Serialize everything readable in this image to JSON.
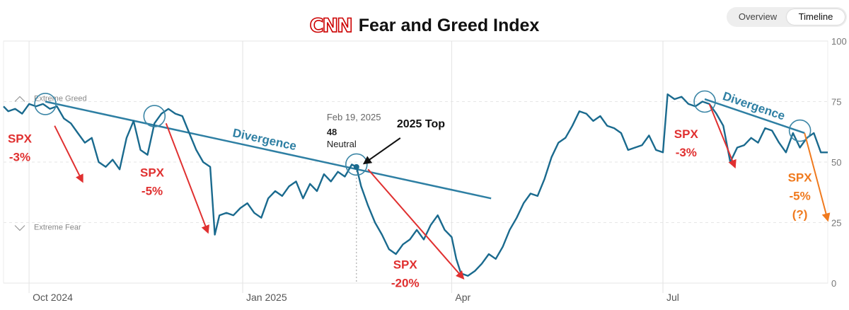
{
  "header": {
    "logo": "CNN",
    "title": "Fear and Greed Index"
  },
  "toggle": {
    "overview_label": "Overview",
    "timeline_label": "Timeline",
    "active": "Timeline"
  },
  "chart_data": {
    "type": "line",
    "title": "Fear and Greed Index",
    "ylim": [
      0,
      100
    ],
    "y_ticks": [
      0,
      25,
      50,
      75,
      100
    ],
    "y_axis_side": "right",
    "x_ticks": [
      {
        "label": "Oct 2024",
        "date": "2024-10-01"
      },
      {
        "label": "Jan 2025",
        "date": "2025-01-01"
      },
      {
        "label": "Apr",
        "date": "2025-04-01"
      },
      {
        "label": "Jul",
        "date": "2025-07-01"
      }
    ],
    "xlim": [
      "2024-09-20",
      "2025-09-10"
    ],
    "zones": [
      {
        "label": "Extreme Greed",
        "value": 75
      },
      {
        "label": "Extreme Fear",
        "value": 25
      }
    ],
    "series": [
      {
        "color": "#1a6a8e",
        "points": [
          [
            "2024-09-20",
            73
          ],
          [
            "2024-09-22",
            71
          ],
          [
            "2024-09-25",
            72
          ],
          [
            "2024-09-28",
            70
          ],
          [
            "2024-10-01",
            74
          ],
          [
            "2024-10-04",
            73
          ],
          [
            "2024-10-07",
            74
          ],
          [
            "2024-10-10",
            72
          ],
          [
            "2024-10-13",
            73
          ],
          [
            "2024-10-16",
            68
          ],
          [
            "2024-10-19",
            66
          ],
          [
            "2024-10-22",
            62
          ],
          [
            "2024-10-25",
            58
          ],
          [
            "2024-10-28",
            60
          ],
          [
            "2024-10-31",
            50
          ],
          [
            "2024-11-03",
            48
          ],
          [
            "2024-11-06",
            51
          ],
          [
            "2024-11-09",
            47
          ],
          [
            "2024-11-12",
            60
          ],
          [
            "2024-11-15",
            67
          ],
          [
            "2024-11-18",
            55
          ],
          [
            "2024-11-21",
            53
          ],
          [
            "2024-11-24",
            66
          ],
          [
            "2024-11-27",
            70
          ],
          [
            "2024-11-30",
            72
          ],
          [
            "2024-12-03",
            70
          ],
          [
            "2024-12-06",
            69
          ],
          [
            "2024-12-09",
            62
          ],
          [
            "2024-12-12",
            55
          ],
          [
            "2024-12-15",
            50
          ],
          [
            "2024-12-18",
            48
          ],
          [
            "2024-12-20",
            20
          ],
          [
            "2024-12-22",
            28
          ],
          [
            "2024-12-25",
            29
          ],
          [
            "2024-12-28",
            28
          ],
          [
            "2024-12-31",
            31
          ],
          [
            "2025-01-03",
            33
          ],
          [
            "2025-01-06",
            29
          ],
          [
            "2025-01-09",
            27
          ],
          [
            "2025-01-12",
            35
          ],
          [
            "2025-01-15",
            38
          ],
          [
            "2025-01-18",
            36
          ],
          [
            "2025-01-21",
            40
          ],
          [
            "2025-01-24",
            42
          ],
          [
            "2025-01-27",
            35
          ],
          [
            "2025-01-30",
            41
          ],
          [
            "2025-02-02",
            38
          ],
          [
            "2025-02-05",
            45
          ],
          [
            "2025-02-08",
            42
          ],
          [
            "2025-02-11",
            46
          ],
          [
            "2025-02-14",
            44
          ],
          [
            "2025-02-17",
            49
          ],
          [
            "2025-02-19",
            48
          ],
          [
            "2025-02-21",
            40
          ],
          [
            "2025-02-24",
            32
          ],
          [
            "2025-02-27",
            25
          ],
          [
            "2025-03-02",
            20
          ],
          [
            "2025-03-05",
            14
          ],
          [
            "2025-03-08",
            12
          ],
          [
            "2025-03-11",
            16
          ],
          [
            "2025-03-14",
            18
          ],
          [
            "2025-03-17",
            22
          ],
          [
            "2025-03-20",
            18
          ],
          [
            "2025-03-23",
            24
          ],
          [
            "2025-03-26",
            28
          ],
          [
            "2025-03-29",
            22
          ],
          [
            "2025-04-01",
            19
          ],
          [
            "2025-04-03",
            10
          ],
          [
            "2025-04-05",
            4
          ],
          [
            "2025-04-08",
            3
          ],
          [
            "2025-04-11",
            5
          ],
          [
            "2025-04-14",
            8
          ],
          [
            "2025-04-17",
            12
          ],
          [
            "2025-04-20",
            10
          ],
          [
            "2025-04-23",
            15
          ],
          [
            "2025-04-26",
            22
          ],
          [
            "2025-04-29",
            27
          ],
          [
            "2025-05-02",
            33
          ],
          [
            "2025-05-05",
            37
          ],
          [
            "2025-05-08",
            36
          ],
          [
            "2025-05-11",
            43
          ],
          [
            "2025-05-14",
            52
          ],
          [
            "2025-05-17",
            58
          ],
          [
            "2025-05-20",
            60
          ],
          [
            "2025-05-23",
            65
          ],
          [
            "2025-05-26",
            71
          ],
          [
            "2025-05-29",
            70
          ],
          [
            "2025-06-01",
            67
          ],
          [
            "2025-06-04",
            69
          ],
          [
            "2025-06-07",
            65
          ],
          [
            "2025-06-10",
            64
          ],
          [
            "2025-06-13",
            62
          ],
          [
            "2025-06-16",
            55
          ],
          [
            "2025-06-19",
            56
          ],
          [
            "2025-06-22",
            57
          ],
          [
            "2025-06-25",
            61
          ],
          [
            "2025-06-28",
            55
          ],
          [
            "2025-07-01",
            54
          ],
          [
            "2025-07-03",
            78
          ],
          [
            "2025-07-06",
            76
          ],
          [
            "2025-07-09",
            77
          ],
          [
            "2025-07-12",
            74
          ],
          [
            "2025-07-15",
            73
          ],
          [
            "2025-07-18",
            75
          ],
          [
            "2025-07-21",
            74
          ],
          [
            "2025-07-24",
            70
          ],
          [
            "2025-07-27",
            65
          ],
          [
            "2025-07-30",
            50
          ],
          [
            "2025-08-02",
            56
          ],
          [
            "2025-08-05",
            57
          ],
          [
            "2025-08-08",
            60
          ],
          [
            "2025-08-11",
            58
          ],
          [
            "2025-08-14",
            64
          ],
          [
            "2025-08-17",
            63
          ],
          [
            "2025-08-20",
            58
          ],
          [
            "2025-08-23",
            54
          ],
          [
            "2025-08-26",
            62
          ],
          [
            "2025-08-29",
            56
          ],
          [
            "2025-09-01",
            60
          ],
          [
            "2025-09-04",
            62
          ],
          [
            "2025-09-07",
            54
          ],
          [
            "2025-09-10",
            54
          ]
        ]
      }
    ],
    "tooltip": {
      "date": "Feb 19, 2025",
      "value": "48",
      "rating": "Neutral",
      "x": "2025-02-19",
      "y": 48
    },
    "annotations": {
      "top_label": "2025 Top",
      "divergence_label": "Divergence",
      "spx_label": "SPX",
      "divergences": [
        {
          "from": [
            "2024-10-08",
            75
          ],
          "to": [
            "2025-04-18",
            35
          ]
        },
        {
          "from": [
            "2025-07-19",
            76
          ],
          "to": [
            "2025-08-31",
            62
          ]
        }
      ],
      "circles": [
        [
          "2024-10-08",
          74
        ],
        [
          "2024-11-24",
          69
        ],
        [
          "2025-02-19",
          49
        ],
        [
          "2025-07-19",
          75
        ],
        [
          "2025-08-29",
          63
        ]
      ],
      "moves": [
        {
          "value": "-3%",
          "from": [
            "2024-10-12",
            65
          ],
          "to": [
            "2024-10-24",
            42
          ],
          "color": "#e03030",
          "label_at": [
            "2024-09-27",
            58
          ]
        },
        {
          "value": "-5%",
          "from": [
            "2024-11-29",
            66
          ],
          "to": [
            "2024-12-17",
            21
          ],
          "color": "#e03030",
          "label_at": [
            "2024-11-23",
            44
          ]
        },
        {
          "value": "-20%",
          "from": [
            "2025-02-24",
            47
          ],
          "to": [
            "2025-04-06",
            2
          ],
          "color": "#e03030",
          "label_at": [
            "2025-03-12",
            6
          ]
        },
        {
          "value": "-3%",
          "from": [
            "2025-07-21",
            74
          ],
          "to": [
            "2025-08-01",
            48
          ],
          "color": "#e03030",
          "label_at": [
            "2025-07-11",
            60
          ]
        },
        {
          "value": "-5%",
          "from": [
            "2025-08-31",
            62
          ],
          "to": [
            "2025-09-10",
            26
          ],
          "color": "#f07a1e",
          "label_at": [
            "2025-08-29",
            42
          ],
          "suffix": "(?)"
        }
      ]
    }
  }
}
